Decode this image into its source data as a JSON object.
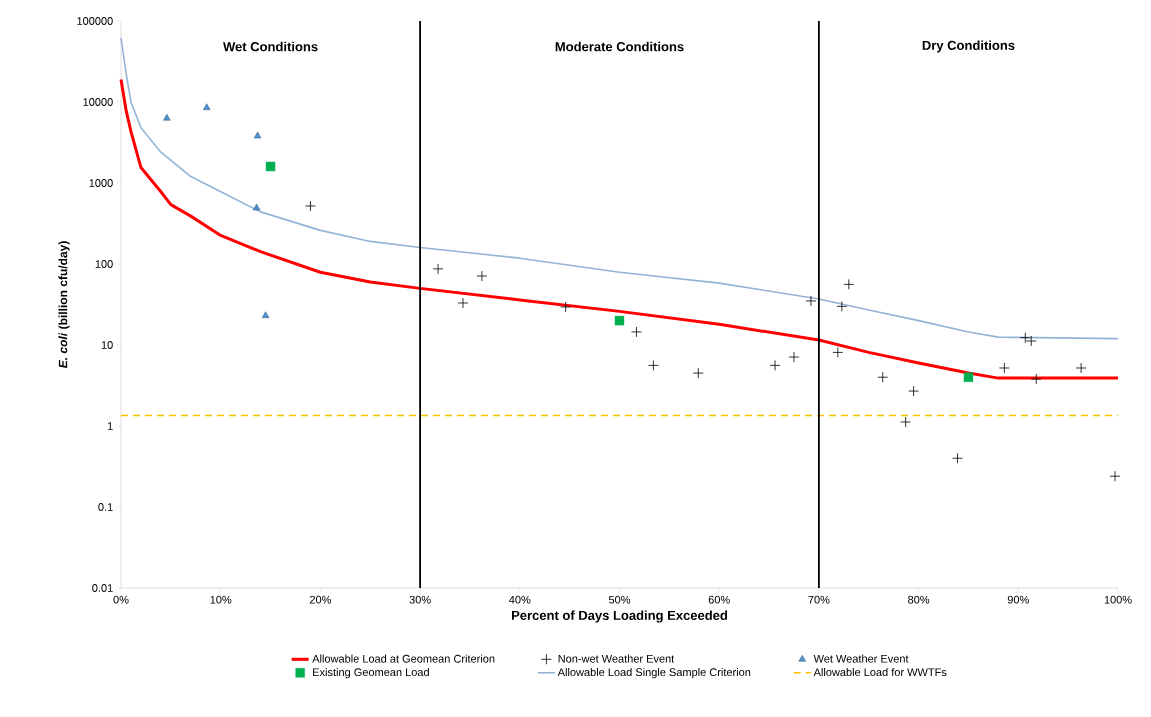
{
  "chart_data": {
    "type": "line",
    "xlabel": "Percent of Days Loading Exceeded",
    "ylabel": "*E. coli* (billion cfu/day)",
    "log": "y",
    "grid": false,
    "legend": "bottom",
    "xlim": [
      0,
      100
    ],
    "ylim": [
      0.01,
      100000
    ],
    "xticks": [
      {
        "value": 0,
        "label": "0%"
      },
      {
        "value": 10,
        "label": "10%"
      },
      {
        "value": 20,
        "label": "20%"
      },
      {
        "value": 30,
        "label": "30%"
      },
      {
        "value": 40,
        "label": "40%"
      },
      {
        "value": 50,
        "label": "50%"
      },
      {
        "value": 60,
        "label": "60%"
      },
      {
        "value": 70,
        "label": "70%"
      },
      {
        "value": 80,
        "label": "80%"
      },
      {
        "value": 90,
        "label": "90%"
      },
      {
        "value": 100,
        "label": "100%"
      }
    ],
    "yticks": [
      0.01,
      0.1,
      1,
      10,
      100,
      1000,
      10000,
      100000
    ],
    "series": [
      {
        "name": "Allowable Load at Geomean Criterion",
        "color": "#ff0000",
        "marker": "none",
        "line_style": "solid",
        "x": [
          0,
          0.5,
          1,
          2,
          4,
          5,
          7,
          10,
          14,
          20,
          25,
          30,
          40,
          50,
          60,
          70,
          75,
          80,
          85,
          88,
          100
        ],
        "values": [
          19000,
          8000,
          4300,
          1550,
          780,
          540,
          390,
          225,
          142,
          79,
          60,
          50,
          36,
          26,
          18,
          11.5,
          8.1,
          6.0,
          4.5,
          3.9,
          3.9
        ]
      },
      {
        "name": "Non-wet Weather Event",
        "type": "scatter",
        "color": "#000000",
        "marker": "cross",
        "x": [
          19.0,
          31.8,
          34.3,
          36.2,
          44.6,
          51.7,
          53.4,
          57.9,
          65.6,
          67.5,
          69.2,
          71.9,
          72.3,
          73.0,
          76.4,
          78.7,
          79.5,
          83.9,
          88.6,
          90.7,
          91.3,
          91.8,
          96.3,
          99.7
        ],
        "values": [
          520,
          87,
          33,
          71,
          29.5,
          14.5,
          5.6,
          4.5,
          5.6,
          7.1,
          35,
          8.1,
          30,
          56,
          4.0,
          1.12,
          2.7,
          0.4,
          5.2,
          12.3,
          11.2,
          3.8,
          5.2,
          0.24
        ]
      },
      {
        "name": "Wet Weather Event",
        "type": "scatter",
        "color": "#4f91d0",
        "marker": "triangle",
        "x": [
          4.6,
          8.6,
          13.7,
          13.6,
          14.5
        ],
        "values": [
          6300,
          8500,
          3800,
          490,
          23
        ]
      },
      {
        "name": "Existing Geomean Load",
        "type": "scatter",
        "color": "#00b050",
        "marker": "square",
        "x": [
          15,
          50,
          85
        ],
        "values": [
          1600,
          20,
          4.0
        ]
      },
      {
        "name": "Allowable Load Single Sample Criterion",
        "color": "#95b3d7",
        "marker": "none",
        "line_style": "solid",
        "x": [
          0,
          0.5,
          1,
          2,
          4,
          7,
          10,
          14,
          20,
          25,
          30,
          40,
          50,
          60,
          70,
          75,
          80,
          85,
          88,
          100
        ],
        "values": [
          62000,
          23000,
          10000,
          4800,
          2400,
          1200,
          780,
          440,
          260,
          190,
          160,
          118,
          79,
          58,
          37,
          27,
          20,
          14.5,
          12.5,
          12
        ]
      }
    ],
    "ref_lines": [
      {
        "axis": "y",
        "value": 1.35,
        "label": "Allowable Load for WWTFs",
        "color": "#ffc000",
        "line_style": "dashed"
      },
      {
        "axis": "x",
        "value": 30,
        "color": "#000000",
        "line_style": "solid"
      },
      {
        "axis": "x",
        "value": 70,
        "color": "#000000",
        "line_style": "solid"
      }
    ],
    "annotations": [
      "**Wet Conditions**",
      "**Moderate Conditions**",
      "**Dry Conditions**"
    ]
  }
}
